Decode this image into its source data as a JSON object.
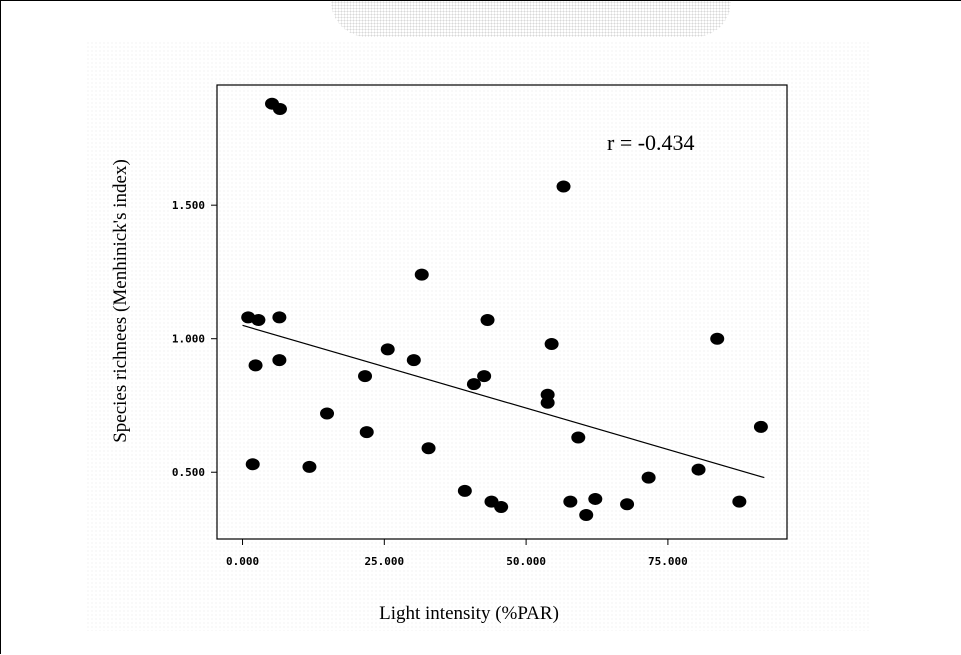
{
  "chart_data": {
    "type": "scatter",
    "xlabel": "Light intensity (%PAR)",
    "ylabel": "Species richnees  (Menhinick's index)",
    "xlim": [
      -4.5,
      96
    ],
    "ylim": [
      0.25,
      1.95
    ],
    "xticks": [
      0,
      25,
      50,
      75
    ],
    "xtick_labels": [
      "0.000",
      "25.000",
      "50.000",
      "75.000"
    ],
    "yticks": [
      0.5,
      1.0,
      1.5
    ],
    "ytick_labels": [
      "0.500",
      "1.000",
      "1.500"
    ],
    "annotation": "r = -0.434",
    "grid": false,
    "legend": "none",
    "point_color": "#000000",
    "trendline": {
      "x": [
        0,
        92
      ],
      "y": [
        1.05,
        0.48
      ]
    },
    "points": [
      {
        "x": 5.2,
        "y": 1.88
      },
      {
        "x": 6.6,
        "y": 1.86
      },
      {
        "x": 56.6,
        "y": 1.57
      },
      {
        "x": 31.6,
        "y": 1.24
      },
      {
        "x": 1.0,
        "y": 1.08
      },
      {
        "x": 2.8,
        "y": 1.07
      },
      {
        "x": 6.5,
        "y": 1.08
      },
      {
        "x": 43.2,
        "y": 1.07
      },
      {
        "x": 83.7,
        "y": 1.0
      },
      {
        "x": 54.5,
        "y": 0.98
      },
      {
        "x": 25.6,
        "y": 0.96
      },
      {
        "x": 30.2,
        "y": 0.92
      },
      {
        "x": 6.5,
        "y": 0.92
      },
      {
        "x": 2.3,
        "y": 0.9
      },
      {
        "x": 21.6,
        "y": 0.86
      },
      {
        "x": 42.6,
        "y": 0.86
      },
      {
        "x": 40.8,
        "y": 0.83
      },
      {
        "x": 53.8,
        "y": 0.79
      },
      {
        "x": 53.8,
        "y": 0.76
      },
      {
        "x": 14.9,
        "y": 0.72
      },
      {
        "x": 21.9,
        "y": 0.65
      },
      {
        "x": 59.2,
        "y": 0.63
      },
      {
        "x": 91.4,
        "y": 0.67
      },
      {
        "x": 32.8,
        "y": 0.59
      },
      {
        "x": 1.8,
        "y": 0.53
      },
      {
        "x": 11.8,
        "y": 0.52
      },
      {
        "x": 80.4,
        "y": 0.51
      },
      {
        "x": 71.6,
        "y": 0.48
      },
      {
        "x": 39.2,
        "y": 0.43
      },
      {
        "x": 43.9,
        "y": 0.39
      },
      {
        "x": 45.6,
        "y": 0.37
      },
      {
        "x": 57.8,
        "y": 0.39
      },
      {
        "x": 62.2,
        "y": 0.4
      },
      {
        "x": 60.6,
        "y": 0.34
      },
      {
        "x": 67.8,
        "y": 0.38
      },
      {
        "x": 87.6,
        "y": 0.39
      }
    ]
  }
}
